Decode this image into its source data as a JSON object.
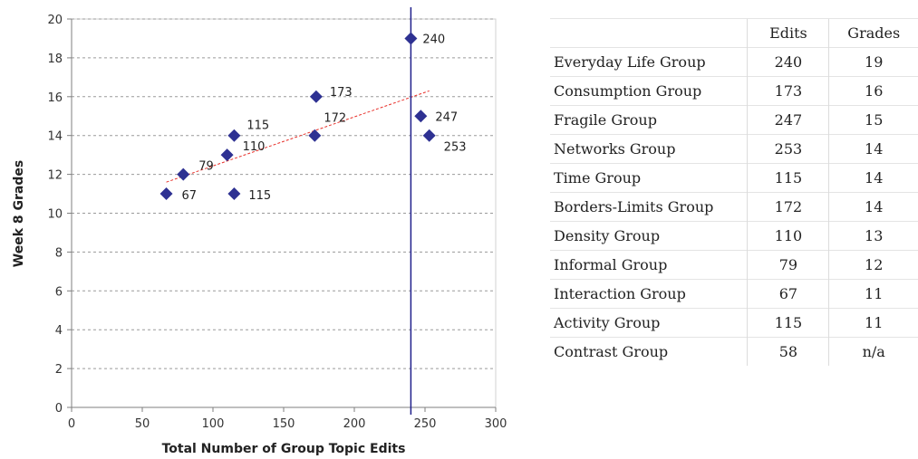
{
  "chart_data": {
    "type": "scatter",
    "xlabel": "Total Number of Group Topic Edits",
    "ylabel": "Week 8 Grades",
    "xlim": [
      0,
      300
    ],
    "ylim": [
      0,
      20
    ],
    "xticks": [
      0,
      50,
      100,
      150,
      200,
      250,
      300
    ],
    "yticks": [
      0,
      2,
      4,
      6,
      8,
      10,
      12,
      14,
      16,
      18,
      20
    ],
    "grid": "horizontal dashed",
    "points": [
      {
        "x": 240,
        "y": 19,
        "label": "240"
      },
      {
        "x": 173,
        "y": 16,
        "label": "173"
      },
      {
        "x": 247,
        "y": 15,
        "label": "247"
      },
      {
        "x": 253,
        "y": 14,
        "label": "253"
      },
      {
        "x": 115,
        "y": 14,
        "label": "115"
      },
      {
        "x": 172,
        "y": 14,
        "label": "172"
      },
      {
        "x": 110,
        "y": 13,
        "label": "110"
      },
      {
        "x": 79,
        "y": 12,
        "label": "79"
      },
      {
        "x": 67,
        "y": 11,
        "label": "67"
      },
      {
        "x": 115,
        "y": 11,
        "label": "115"
      }
    ],
    "trendline": {
      "x1": 67,
      "y1": 11.6,
      "x2": 253,
      "y2": 16.3
    },
    "vertical_line_x": 240,
    "colors": {
      "marker": "#2e3192",
      "trendline": "#e8302a",
      "vline": "#1f1f8c",
      "grid": "#9a9a9a"
    }
  },
  "table": {
    "headers": [
      "",
      "Edits",
      "Grades"
    ],
    "rows": [
      [
        "Everyday Life Group",
        "240",
        "19"
      ],
      [
        "Consumption Group",
        "173",
        "16"
      ],
      [
        "Fragile Group",
        "247",
        "15"
      ],
      [
        "Networks Group",
        "253",
        "14"
      ],
      [
        "Time Group",
        "115",
        "14"
      ],
      [
        "Borders-Limits Group",
        "172",
        "14"
      ],
      [
        "Density Group",
        "110",
        "13"
      ],
      [
        "Informal Group",
        "79",
        "12"
      ],
      [
        "Interaction Group",
        "67",
        "11"
      ],
      [
        "Activity Group",
        "115",
        "11"
      ],
      [
        "Contrast Group",
        "58",
        "n/a"
      ]
    ]
  }
}
